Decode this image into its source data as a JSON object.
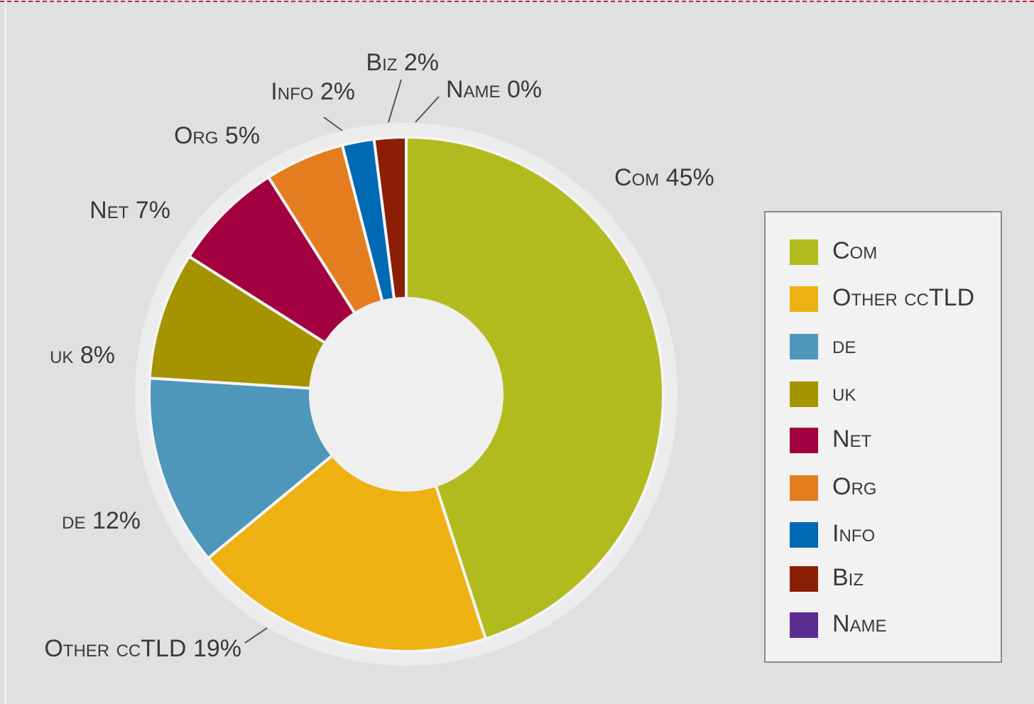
{
  "chart_data": {
    "type": "pie",
    "donut": true,
    "categories": [
      "Com",
      "Other ccTLD",
      "de",
      "uk",
      "Net",
      "Org",
      "Info",
      "Biz",
      "Name"
    ],
    "values": [
      45,
      19,
      12,
      8,
      7,
      5,
      2,
      2,
      0
    ],
    "value_labels": [
      "45%",
      "19%",
      "12%",
      "8%",
      "7%",
      "5%",
      "2%",
      "2%",
      "0%"
    ],
    "colors": [
      "#b2bb1e",
      "#edb111",
      "#4e96ba",
      "#a69300",
      "#a3003f",
      "#e37d1f",
      "#0069b4",
      "#8b1e04",
      "#5c2d91"
    ],
    "legend": "right"
  }
}
